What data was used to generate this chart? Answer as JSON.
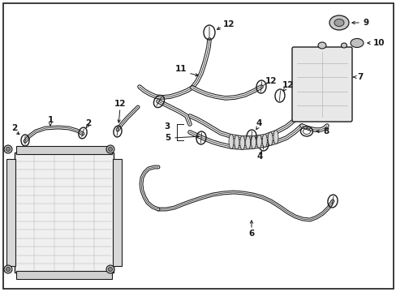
{
  "bg": "#ffffff",
  "fg": "#1a1a1a",
  "fig_w": 4.89,
  "fig_h": 3.6,
  "dpi": 100,
  "lw_hose": 1.8,
  "lw_thin": 0.8,
  "lw_border": 1.2
}
